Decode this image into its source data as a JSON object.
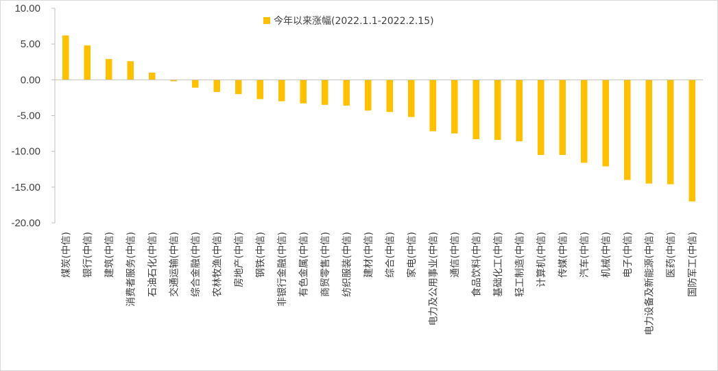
{
  "chart_data": {
    "type": "bar",
    "series": [
      {
        "name": "今年以来涨幅(2022.1.1-2022.2.15)",
        "values": [
          6.2,
          4.8,
          2.9,
          2.6,
          1.0,
          -0.2,
          -1.1,
          -1.7,
          -2.0,
          -2.7,
          -3.0,
          -3.3,
          -3.5,
          -3.6,
          -4.3,
          -4.5,
          -5.2,
          -7.2,
          -7.5,
          -8.3,
          -8.4,
          -8.6,
          -10.5,
          -10.5,
          -11.6,
          -12.1,
          -14.0,
          -14.5,
          -14.6,
          -17.0
        ]
      }
    ],
    "categories": [
      "煤炭(中信)",
      "银行(中信)",
      "建筑(中信)",
      "消费者服务(中信)",
      "石油石化(中信)",
      "交通运输(中信)",
      "综合金融(中信)",
      "农林牧渔(中信)",
      "房地产(中信)",
      "钢铁(中信)",
      "非银行金融(中信)",
      "有色金属(中信)",
      "商贸零售(中信)",
      "纺织服装(中信)",
      "建材(中信)",
      "综合(中信)",
      "家电(中信)",
      "电力及公用事业(中信)",
      "通信(中信)",
      "食品饮料(中信)",
      "基础化工(中信)",
      "轻工制造(中信)",
      "计算机(中信)",
      "传媒(中信)",
      "汽车(中信)",
      "机械(中信)",
      "电子(中信)",
      "电力设备及新能源(中信)",
      "医药(中信)",
      "国防军工(中信)"
    ],
    "yticks": [
      "10.00",
      "5.00",
      "0.00",
      "-5.00",
      "-10.00",
      "-15.00",
      "-20.00"
    ],
    "ylim": [
      -20,
      10
    ],
    "bar_color": "#FFC000",
    "axis_color": "#bfbfbf",
    "legend_position": "top-center",
    "grid": false,
    "title": "",
    "xlabel": "",
    "ylabel": ""
  }
}
